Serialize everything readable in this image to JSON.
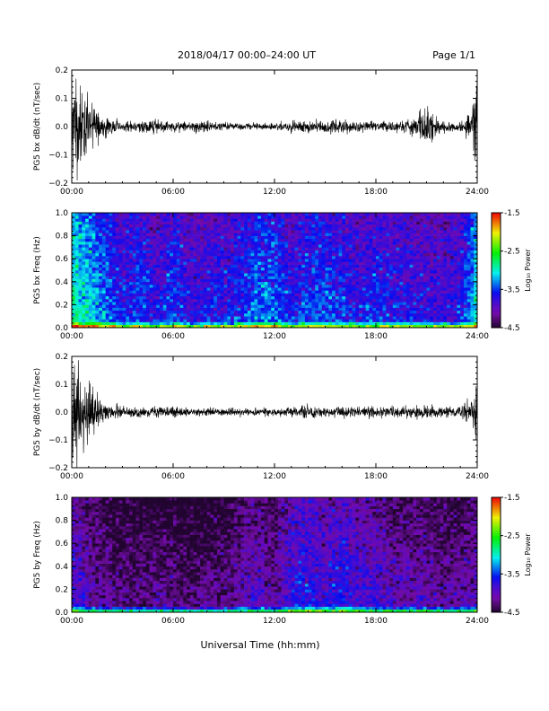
{
  "header": {
    "title": "2018/04/17   00:00–24:00 UT",
    "page": "Page 1/1"
  },
  "footer": {
    "xlabel": "Universal Time (hh:mm)"
  },
  "chart_data": [
    {
      "type": "line",
      "ylabel": "PG5 bx dB/dt (nT/sec)",
      "ylim": [
        -0.2,
        0.2
      ],
      "yticks": [
        "0.2",
        "0.1",
        "0.0",
        "−0.1",
        "−0.2"
      ],
      "ytick_values": [
        0.2,
        0.1,
        0.0,
        -0.1,
        -0.2
      ],
      "xticks": [
        "00:00",
        "06:00",
        "12:00",
        "18:00",
        "24:00"
      ],
      "xlim_hours": [
        0,
        24
      ],
      "color": "#000000",
      "series": [
        {
          "envelope_x_hours": [
            0,
            0.3,
            0.6,
            1.0,
            1.5,
            2.0,
            3.0,
            4.0,
            5.0,
            6.0,
            7.0,
            8.0,
            9.0,
            10.0,
            11.0,
            12.0,
            13.0,
            14.0,
            15.0,
            16.0,
            17.0,
            18.0,
            19.0,
            20.0,
            20.8,
            21.2,
            21.6,
            22.0,
            23.0,
            23.6,
            23.9,
            24.0
          ],
          "envelope_y": [
            0.2,
            0.2,
            0.14,
            0.1,
            0.06,
            0.035,
            0.02,
            0.02,
            0.025,
            0.02,
            0.02,
            0.02,
            0.015,
            0.015,
            0.015,
            0.015,
            0.02,
            0.025,
            0.025,
            0.025,
            0.02,
            0.02,
            0.02,
            0.025,
            0.06,
            0.09,
            0.03,
            0.02,
            0.02,
            0.06,
            0.2,
            0.2
          ]
        }
      ]
    },
    {
      "type": "heatmap",
      "ylabel": "PG5 bx Freq (Hz)",
      "ylim": [
        0.0,
        1.0
      ],
      "yticks": [
        "1.0",
        "0.8",
        "0.6",
        "0.4",
        "0.2",
        "0.0"
      ],
      "ytick_values": [
        1.0,
        0.8,
        0.6,
        0.4,
        0.2,
        0.0
      ],
      "xticks": [
        "00:00",
        "06:00",
        "12:00",
        "18:00",
        "24:00"
      ],
      "xlim_hours": [
        0,
        24
      ],
      "colorbar": {
        "label": "Log₁₀ Power",
        "range": [
          -4.5,
          -1.5
        ],
        "ticks": [
          "-1.5",
          "-2.5",
          "-3.5",
          "-4.5"
        ],
        "tick_values": [
          -1.5,
          -2.5,
          -3.5,
          -4.5
        ]
      },
      "profile_hours": [
        0,
        1,
        2,
        3,
        4,
        5,
        6,
        7,
        8,
        9,
        10,
        11,
        12,
        13,
        14,
        15,
        16,
        17,
        18,
        19,
        20,
        21,
        22,
        23,
        24
      ],
      "profile_log_power": [
        -2.8,
        -3.0,
        -3.3,
        -3.6,
        -3.4,
        -3.7,
        -3.4,
        -3.7,
        -3.6,
        -3.6,
        -3.5,
        -3.3,
        -3.3,
        -3.6,
        -3.4,
        -3.4,
        -3.5,
        -3.6,
        -3.5,
        -3.6,
        -3.6,
        -3.7,
        -3.7,
        -3.6,
        -3.0
      ]
    },
    {
      "type": "line",
      "ylabel": "PG5 by dB/dt (nT/sec)",
      "ylim": [
        -0.2,
        0.2
      ],
      "yticks": [
        "0.2",
        "0.1",
        "0.0",
        "−0.1",
        "−0.2"
      ],
      "ytick_values": [
        0.2,
        0.1,
        0.0,
        -0.1,
        -0.2
      ],
      "xticks": [
        "00:00",
        "06:00",
        "12:00",
        "18:00",
        "24:00"
      ],
      "xlim_hours": [
        0,
        24
      ],
      "color": "#000000",
      "series": [
        {
          "envelope_x_hours": [
            0,
            0.3,
            0.6,
            1.0,
            1.5,
            2.0,
            3.0,
            4.0,
            5.0,
            6.0,
            7.0,
            8.0,
            9.0,
            10.0,
            11.0,
            12.0,
            13.0,
            14.0,
            15.0,
            16.0,
            17.0,
            18.0,
            19.0,
            20.0,
            21.0,
            22.0,
            23.0,
            23.6,
            23.9,
            24.0
          ],
          "envelope_y": [
            0.2,
            0.2,
            0.15,
            0.12,
            0.07,
            0.04,
            0.025,
            0.02,
            0.02,
            0.02,
            0.015,
            0.015,
            0.015,
            0.015,
            0.015,
            0.015,
            0.02,
            0.025,
            0.02,
            0.02,
            0.02,
            0.02,
            0.02,
            0.02,
            0.025,
            0.02,
            0.02,
            0.05,
            0.1,
            0.1
          ]
        }
      ]
    },
    {
      "type": "heatmap",
      "ylabel": "PG5 by Freq (Hz)",
      "ylim": [
        0.0,
        1.0
      ],
      "yticks": [
        "1.0",
        "0.8",
        "0.6",
        "0.4",
        "0.2",
        "0.0"
      ],
      "ytick_values": [
        1.0,
        0.8,
        0.6,
        0.4,
        0.2,
        0.0
      ],
      "xticks": [
        "00:00",
        "06:00",
        "12:00",
        "18:00",
        "24:00"
      ],
      "xlim_hours": [
        0,
        24
      ],
      "colorbar": {
        "label": "Log₁₀ Power",
        "range": [
          -4.5,
          -1.5
        ],
        "ticks": [
          "-1.5",
          "-2.5",
          "-3.5",
          "-4.5"
        ],
        "tick_values": [
          -1.5,
          -2.5,
          -3.5,
          -4.5
        ]
      },
      "profile_hours": [
        0,
        1,
        2,
        3,
        4,
        5,
        6,
        7,
        8,
        9,
        10,
        11,
        12,
        13,
        14,
        15,
        16,
        17,
        18,
        19,
        20,
        21,
        22,
        23,
        24
      ],
      "profile_log_power": [
        -3.7,
        -4.0,
        -4.1,
        -4.2,
        -4.2,
        -4.2,
        -4.2,
        -4.3,
        -4.2,
        -4.2,
        -4.0,
        -3.9,
        -4.1,
        -3.7,
        -3.6,
        -3.8,
        -3.6,
        -3.8,
        -3.8,
        -4.0,
        -4.0,
        -4.0,
        -4.1,
        -4.1,
        -3.9
      ]
    }
  ]
}
